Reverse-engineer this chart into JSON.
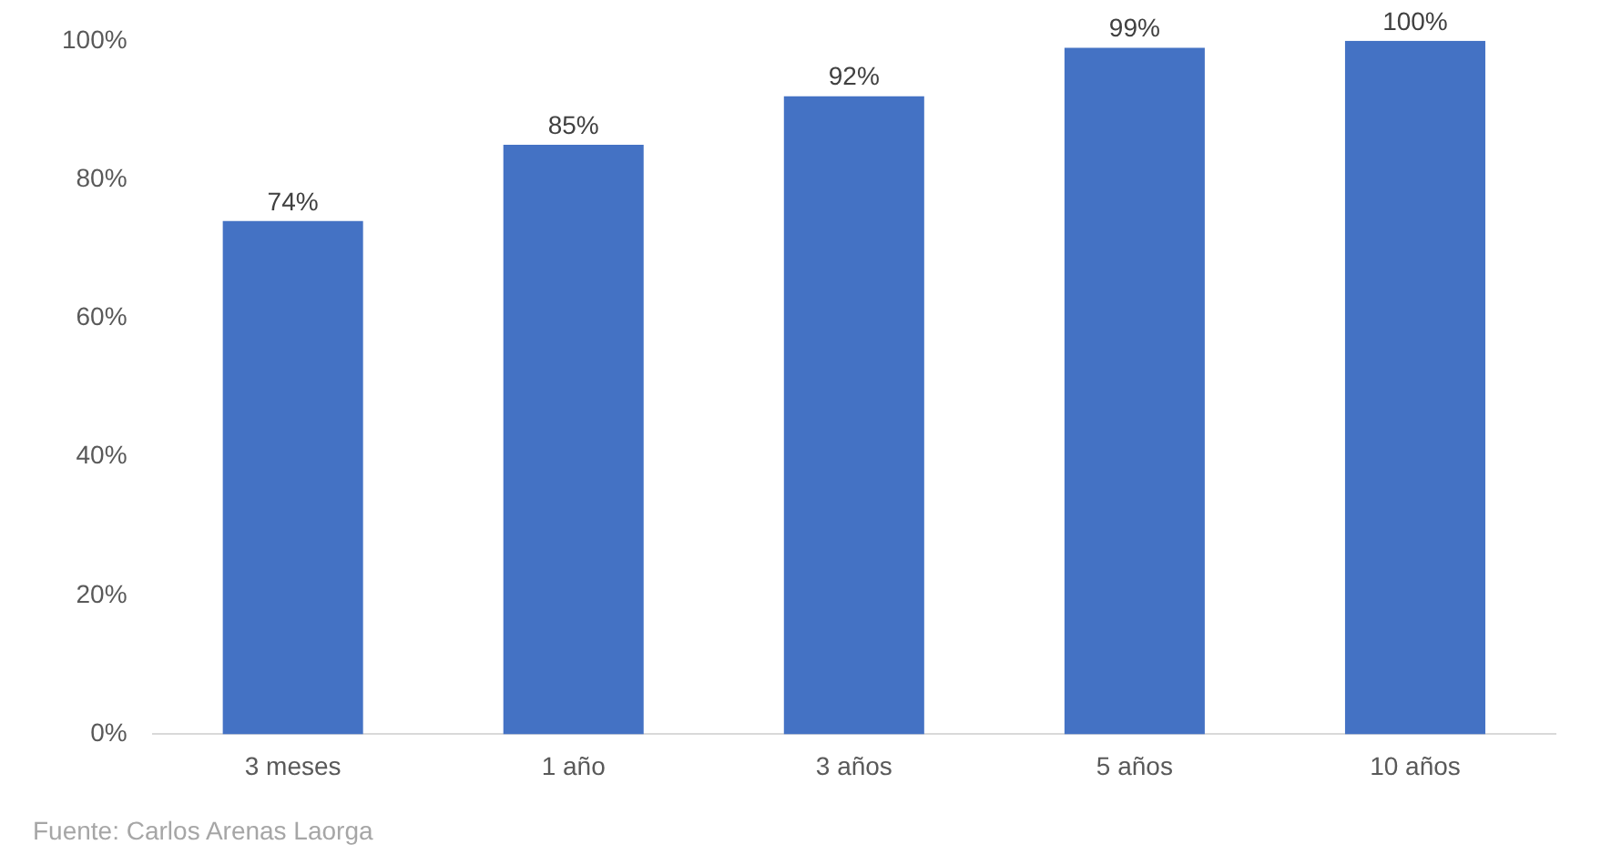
{
  "chart_data": {
    "type": "bar",
    "categories": [
      "3 meses",
      "1 año",
      "3 años",
      "5 años",
      "10 años"
    ],
    "values": [
      74,
      85,
      92,
      99,
      100
    ],
    "value_labels": [
      "74%",
      "85%",
      "92%",
      "99%",
      "100%"
    ],
    "color": "#4472c4",
    "ylim": [
      0,
      100
    ],
    "yticks": [
      {
        "value": 0,
        "label": "0%"
      },
      {
        "value": 20,
        "label": "20%"
      },
      {
        "value": 40,
        "label": "40%"
      },
      {
        "value": 60,
        "label": "60%"
      },
      {
        "value": 80,
        "label": "80%"
      },
      {
        "value": 100,
        "label": "100%"
      }
    ],
    "grid": false,
    "legend": false,
    "annotations": [
      "Fuente: Carlos Arenas Laorga"
    ]
  }
}
